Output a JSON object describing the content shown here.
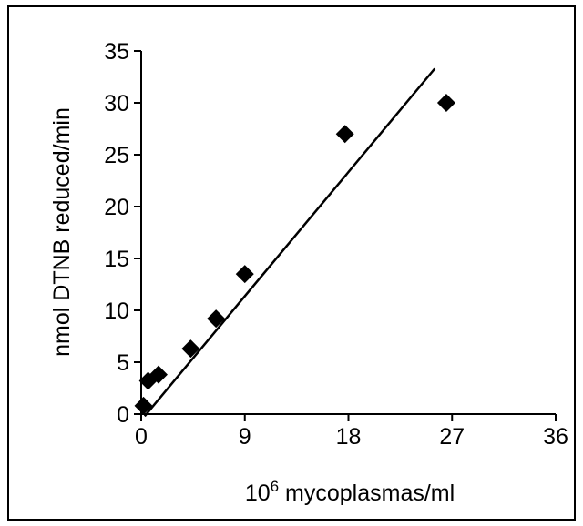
{
  "chart_data": {
    "type": "scatter",
    "title": "",
    "xlabel": "10",
    "xlabel_superscript": "6",
    "xlabel_rest": " mycoplasmas/ml",
    "ylabel": "nmol DTNB reduced/min",
    "xlim": [
      0,
      36
    ],
    "ylim": [
      0,
      35
    ],
    "xticks": [
      0,
      9,
      18,
      27,
      36
    ],
    "yticks": [
      0,
      5,
      10,
      15,
      20,
      25,
      30,
      35
    ],
    "grid": false,
    "legend": "none",
    "marker": "diamond",
    "marker_color": "#000000",
    "series": [
      {
        "points": [
          {
            "x": 0.2,
            "y": 0.8
          },
          {
            "x": 0.6,
            "y": 3.2
          },
          {
            "x": 1.5,
            "y": 3.8
          },
          {
            "x": 4.3,
            "y": 6.3
          },
          {
            "x": 6.5,
            "y": 9.2
          },
          {
            "x": 9.0,
            "y": 13.5
          },
          {
            "x": 17.7,
            "y": 27.0
          },
          {
            "x": 26.5,
            "y": 30.0
          }
        ]
      }
    ],
    "trendline": {
      "x": [
        0.3,
        25.5
      ],
      "y": [
        -0.2,
        33.3
      ]
    }
  }
}
